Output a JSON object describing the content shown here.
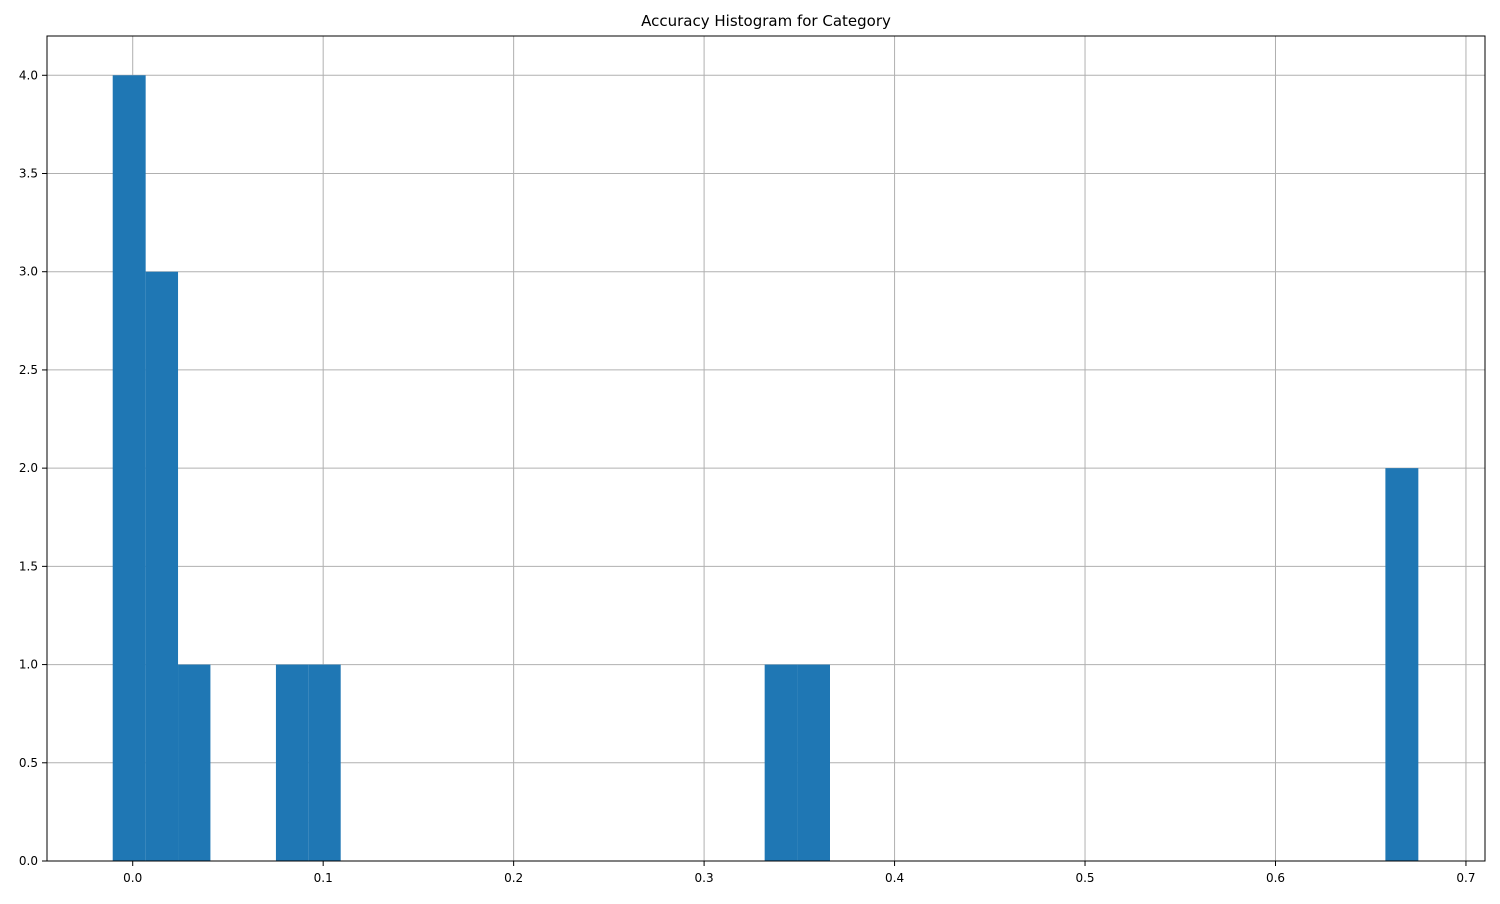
{
  "chart_data": {
    "type": "bar",
    "title": "Accuracy Histogram for Category",
    "xlabel": "",
    "ylabel": "",
    "xlim": [
      -0.045,
      0.71
    ],
    "ylim": [
      0,
      4.2
    ],
    "grid": true,
    "legend": "none",
    "bar_color": "#1f77b4",
    "grid_color": "#b0b0b0",
    "bin_width": 0.0343,
    "bins": [
      {
        "x0": -0.0105,
        "x1": 0.0068,
        "count": 4
      },
      {
        "x0": 0.0068,
        "x1": 0.0238,
        "count": 3
      },
      {
        "x0": 0.0238,
        "x1": 0.0408,
        "count": 1
      },
      {
        "x0": 0.0752,
        "x1": 0.0922,
        "count": 1
      },
      {
        "x0": 0.0922,
        "x1": 0.1092,
        "count": 1
      },
      {
        "x0": 0.3318,
        "x1": 0.349,
        "count": 1
      },
      {
        "x0": 0.349,
        "x1": 0.3661,
        "count": 1
      },
      {
        "x0": 0.6577,
        "x1": 0.675,
        "count": 2
      }
    ],
    "x_ticks": [
      {
        "value": 0.0,
        "label": "0.0"
      },
      {
        "value": 0.1,
        "label": "0.1"
      },
      {
        "value": 0.2,
        "label": "0.2"
      },
      {
        "value": 0.3,
        "label": "0.3"
      },
      {
        "value": 0.4,
        "label": "0.4"
      },
      {
        "value": 0.5,
        "label": "0.5"
      },
      {
        "value": 0.6,
        "label": "0.6"
      },
      {
        "value": 0.7,
        "label": "0.7"
      }
    ],
    "y_ticks": [
      {
        "value": 0.0,
        "label": "0.0"
      },
      {
        "value": 0.5,
        "label": "0.5"
      },
      {
        "value": 1.0,
        "label": "1.0"
      },
      {
        "value": 1.5,
        "label": "1.5"
      },
      {
        "value": 2.0,
        "label": "2.0"
      },
      {
        "value": 2.5,
        "label": "2.5"
      },
      {
        "value": 3.0,
        "label": "3.0"
      },
      {
        "value": 3.5,
        "label": "3.5"
      },
      {
        "value": 4.0,
        "label": "4.0"
      }
    ]
  }
}
